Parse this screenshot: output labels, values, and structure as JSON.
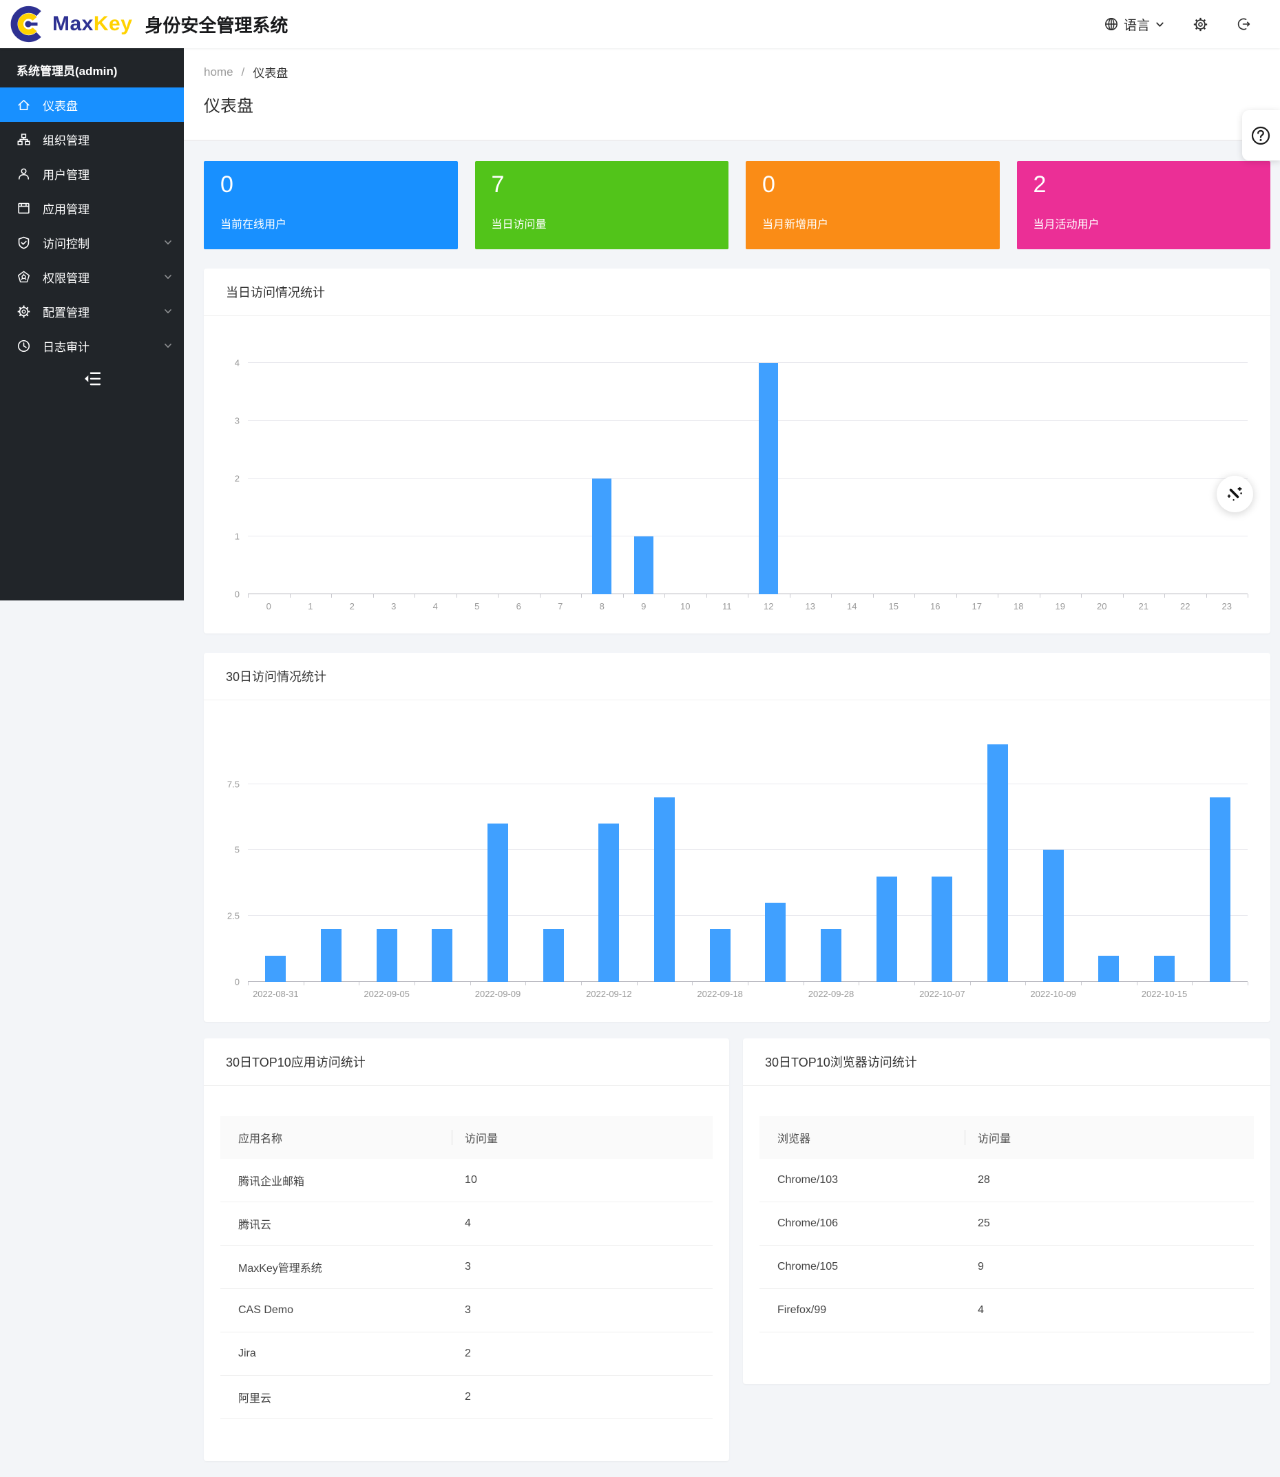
{
  "header": {
    "brand_max": "Max",
    "brand_key": "Key",
    "app_title": "身份安全管理系统",
    "language_label": "语言"
  },
  "sidebar": {
    "admin_label": "系统管理员(admin)",
    "items": [
      {
        "name": "dashboard",
        "label": "仪表盘",
        "icon": "home",
        "active": true,
        "expandable": false
      },
      {
        "name": "organization",
        "label": "组织管理",
        "icon": "org",
        "active": false,
        "expandable": false
      },
      {
        "name": "users",
        "label": "用户管理",
        "icon": "user",
        "active": false,
        "expandable": false
      },
      {
        "name": "apps",
        "label": "应用管理",
        "icon": "app",
        "active": false,
        "expandable": false
      },
      {
        "name": "access-control",
        "label": "访问控制",
        "icon": "shield",
        "active": false,
        "expandable": true
      },
      {
        "name": "permissions",
        "label": "权限管理",
        "icon": "safety",
        "active": false,
        "expandable": true
      },
      {
        "name": "config",
        "label": "配置管理",
        "icon": "gear",
        "active": false,
        "expandable": true
      },
      {
        "name": "audit-log",
        "label": "日志审计",
        "icon": "clock",
        "active": false,
        "expandable": true
      }
    ]
  },
  "breadcrumb": {
    "items": [
      "home",
      "仪表盘"
    ],
    "separator": "/"
  },
  "page_title": "仪表盘",
  "stats": [
    {
      "name": "online-users",
      "value": "0",
      "label": "当前在线用户",
      "color": "#1890ff"
    },
    {
      "name": "today-visits",
      "value": "7",
      "label": "当日访问量",
      "color": "#52c41a"
    },
    {
      "name": "month-new-users",
      "value": "0",
      "label": "当月新增用户",
      "color": "#fa8c16"
    },
    {
      "name": "month-active-users",
      "value": "2",
      "label": "当月活动用户",
      "color": "#eb2f96"
    }
  ],
  "chart_data": [
    {
      "type": "bar",
      "name": "today-visits-chart",
      "title": "当日访问情况统计",
      "categories": [
        "0",
        "1",
        "2",
        "3",
        "4",
        "5",
        "6",
        "7",
        "8",
        "9",
        "10",
        "11",
        "12",
        "13",
        "14",
        "15",
        "16",
        "17",
        "18",
        "19",
        "20",
        "21",
        "22",
        "23"
      ],
      "values": [
        0,
        0,
        0,
        0,
        0,
        0,
        0,
        0,
        2,
        1,
        0,
        0,
        4,
        0,
        0,
        0,
        0,
        0,
        0,
        0,
        0,
        0,
        0,
        0
      ],
      "xlabel": "",
      "ylabel": "",
      "ylim": [
        0,
        4
      ],
      "y_ticks": [
        0,
        1,
        2,
        3,
        4
      ],
      "grid": true,
      "bar_color": "#40a0ff"
    },
    {
      "type": "bar",
      "name": "30day-visits-chart",
      "title": "30日访问情况统计",
      "values": [
        1,
        2,
        2,
        2,
        6,
        2,
        6,
        7,
        2,
        3,
        2,
        4,
        4,
        9,
        5,
        1,
        1,
        7
      ],
      "x_labels": [
        "2022-08-31",
        "2022-09-05",
        "2022-09-09",
        "2022-09-12",
        "2022-09-18",
        "2022-09-28",
        "2022-10-07",
        "2022-10-09",
        "2022-10-15"
      ],
      "label_interval": 2,
      "xlabel": "",
      "ylabel": "",
      "ylim": [
        0,
        9
      ],
      "y_ticks": [
        0,
        2.5,
        5,
        7.5
      ],
      "grid": true,
      "bar_color": "#40a0ff"
    }
  ],
  "tables": [
    {
      "name": "top10-apps-table",
      "title": "30日TOP10应用访问统计",
      "columns": [
        "应用名称",
        "访问量"
      ],
      "rows": [
        [
          "腾讯企业邮箱",
          "10"
        ],
        [
          "腾讯云",
          "4"
        ],
        [
          "MaxKey管理系统",
          "3"
        ],
        [
          "CAS Demo",
          "3"
        ],
        [
          "Jira",
          "2"
        ],
        [
          "阿里云",
          "2"
        ]
      ]
    },
    {
      "name": "top10-browsers-table",
      "title": "30日TOP10浏览器访问统计",
      "columns": [
        "浏览器",
        "访问量"
      ],
      "rows": [
        [
          "Chrome/103",
          "28"
        ],
        [
          "Chrome/106",
          "25"
        ],
        [
          "Chrome/105",
          "9"
        ],
        [
          "Firefox/99",
          "4"
        ]
      ]
    }
  ],
  "floating": {
    "help_icon": "question-circle",
    "theme_icon": "magic-wand"
  }
}
